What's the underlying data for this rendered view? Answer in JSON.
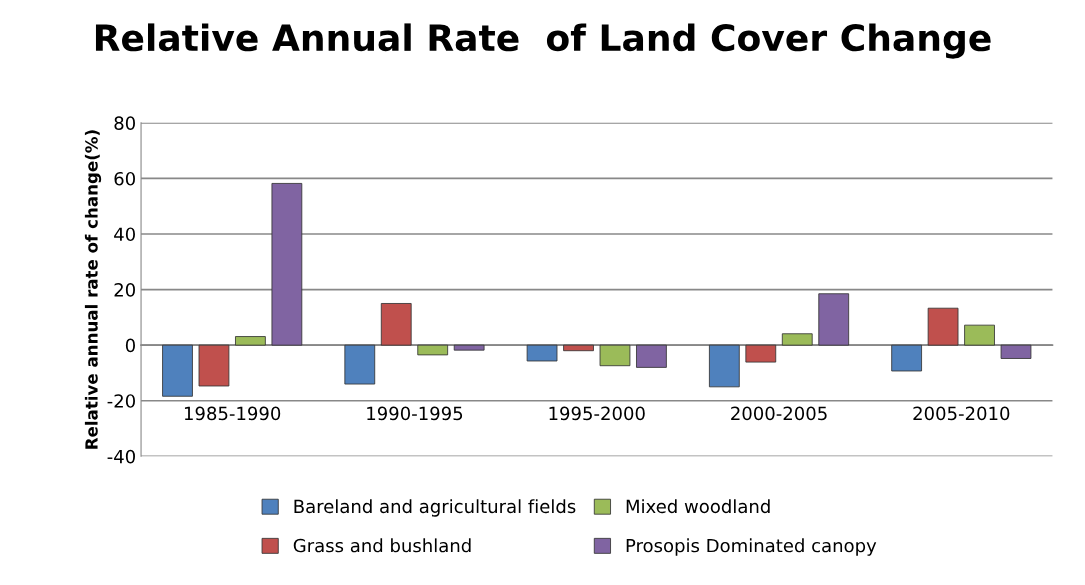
{
  "chart_data": {
    "type": "bar",
    "title": "Relative Annual Rate  of Land Cover Change",
    "ylabel": "Relative annual rate of change(%)",
    "categories": [
      "1985-1990",
      "1990-1995",
      "1995-2000",
      "2000-2005",
      "2005-2010"
    ],
    "series": [
      {
        "name": "Bareland and agricultural fields",
        "color": "#4f81bd",
        "values": [
          -18.4,
          -14,
          -5.7,
          -15,
          -9.3
        ]
      },
      {
        "name": "Grass and bushland",
        "color": "#c0504d",
        "values": [
          -14.7,
          15,
          -2,
          -6.1,
          13.3
        ]
      },
      {
        "name": "Mixed woodland",
        "color": "#9bbb59",
        "values": [
          3.1,
          -3.5,
          -7.4,
          4.1,
          7.2
        ]
      },
      {
        "name": "Prosopis Dominated canopy",
        "color": "#8064a2",
        "values": [
          58.2,
          -1.8,
          -8,
          18.5,
          -4.8
        ]
      }
    ],
    "ylim": [
      -40,
      80
    ],
    "yticks": [
      -40,
      -20,
      0,
      20,
      40,
      60,
      80
    ],
    "grid": "y",
    "legend": "bottom"
  }
}
